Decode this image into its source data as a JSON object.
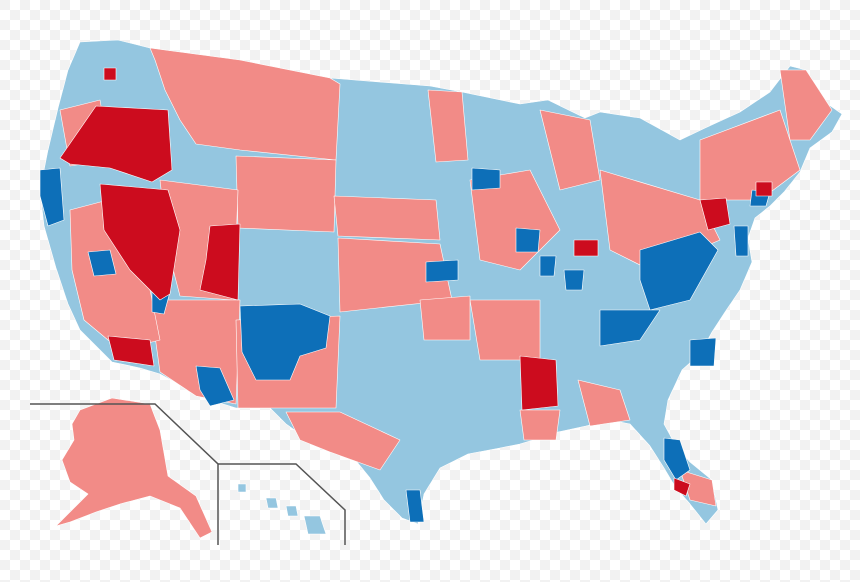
{
  "map": {
    "title": "",
    "colors": {
      "dem_strong": "#0d6fb8",
      "dem_weak": "#94c6e0",
      "rep_weak": "#f28b87",
      "rep_strong": "#cc0c1e",
      "border": "#ffffff",
      "background": "#ffffff",
      "inset_line": "#555555"
    }
  }
}
